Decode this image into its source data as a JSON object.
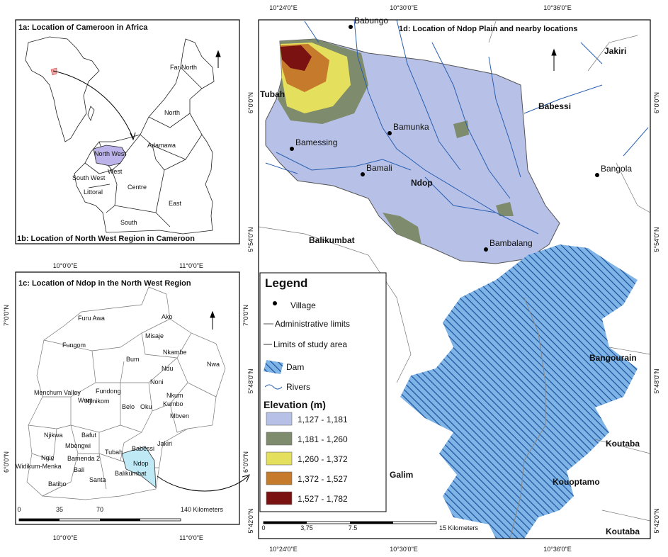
{
  "panel_1a": {
    "title": "1a: Location of Cameroon in Africa"
  },
  "panel_1b": {
    "title": "1b: Location of North West Region in Cameroon",
    "regions": [
      "Far North",
      "North",
      "Adamawa",
      "North West",
      "West",
      "South West",
      "Littoral",
      "Centre",
      "East",
      "South"
    ]
  },
  "panel_1c": {
    "title": "1c: Location of Ndop in the North West Region",
    "top_ticks": [
      "10°0'0\"E",
      "11°0'0\"E"
    ],
    "bottom_ticks": [
      "10°0'0\"E",
      "11°0'0\"E"
    ],
    "left_ticks": [
      "7°0'0\"N",
      "6°0'0\"N"
    ],
    "right_ticks": [
      "7°0'0\"N",
      "6°0'0\"N"
    ],
    "places": [
      "Furu Awa",
      "Ako",
      "Misaje",
      "Fungom",
      "Nkambe",
      "Bum",
      "Nwa",
      "Menchum Valley",
      "Wum",
      "Ndu",
      "Noni",
      "Fundong",
      "Njinikom",
      "Nkum",
      "Belo",
      "Oku",
      "Kumbo",
      "Mbven",
      "Njikwa",
      "Bafut",
      "Mbengwi",
      "Ngie",
      "Bamenda 2",
      "Tubah",
      "Babessi",
      "Jakiri",
      "Widikum-Menka",
      "Bali",
      "Ndop",
      "Batibo",
      "Santa",
      "Balikumbat"
    ],
    "scale": [
      "0",
      "35",
      "70",
      "140 Kilometers"
    ]
  },
  "panel_1d": {
    "title": "1d: Location of Ndop Plain and nearby locations",
    "top_ticks": [
      "10°24'0\"E",
      "10°30'0\"E",
      "10°36'0\"E"
    ],
    "bottom_ticks": [
      "10°24'0\"E",
      "10°30'0\"E",
      "10°36'0\"E"
    ],
    "left_ticks": [
      "6°0'0\"N",
      "5°54'0\"N",
      "5°48'0\"N",
      "5°42'0\"N"
    ],
    "right_ticks": [
      "6°0'0\"N",
      "5°54'0\"N",
      "5°48'0\"N",
      "5°42'0\"N"
    ],
    "villages": [
      "Babungo",
      "Bamunka",
      "Bamessing",
      "Bamali",
      "Bangola",
      "Bambalang"
    ],
    "places": [
      "Jakiri",
      "Tubah",
      "Babessi",
      "Ndop",
      "Balikumbat",
      "Bangourain",
      "Koutaba",
      "Galim",
      "Kouoptamo",
      "Koutaba"
    ],
    "scale": [
      "0",
      "3,75",
      "7.5",
      "15 Kilometers"
    ]
  },
  "legend": {
    "title": "Legend",
    "items": [
      "Village",
      "Administrative limits",
      "Limits of study area",
      "Dam",
      "Rivers"
    ],
    "elevation_title": "Elevation (m)",
    "elevation_classes": [
      {
        "label": "1,127 - 1,181",
        "color": "#b7c1e8"
      },
      {
        "label": "1,181 - 1,260",
        "color": "#7e8b6c"
      },
      {
        "label": "1,260 - 1,372",
        "color": "#e4df5c"
      },
      {
        "label": "1,372 - 1,527",
        "color": "#c57a2c"
      },
      {
        "label": "1,527 - 1,782",
        "color": "#7a1212"
      }
    ]
  }
}
